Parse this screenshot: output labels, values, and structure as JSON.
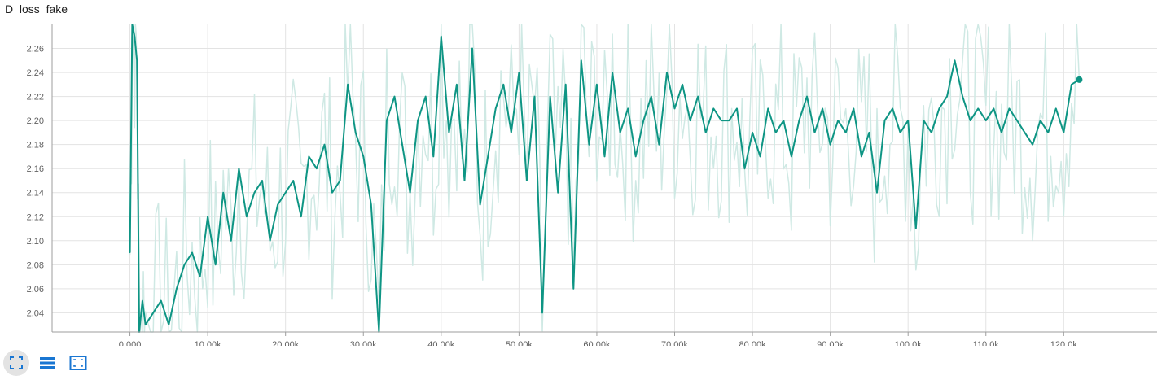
{
  "card": {
    "title": "D_loss_fake"
  },
  "toolbar": {
    "buttons": [
      {
        "icon": "expand-fullscreen-icon",
        "active": true
      },
      {
        "icon": "toggle-log-lines-icon",
        "active": false
      },
      {
        "icon": "fit-domain-icon",
        "active": false
      }
    ]
  },
  "colors": {
    "smoothed": "#0e9584",
    "raw": "#cfe9e4",
    "grid": "#e3e3e3",
    "axis": "#9e9e9e"
  },
  "chart_data": {
    "type": "line",
    "title": "D_loss_fake",
    "xlabel": "",
    "ylabel": "",
    "xlim": [
      -10000,
      132000
    ],
    "ylim": [
      2.024,
      2.28
    ],
    "grid": true,
    "x_ticks": [
      0,
      10000,
      20000,
      30000,
      40000,
      50000,
      60000,
      70000,
      80000,
      90000,
      100000,
      110000,
      120000
    ],
    "x_tick_labels": [
      "0.000",
      "10.00k",
      "20.00k",
      "30.00k",
      "40.00k",
      "50.00k",
      "60.00k",
      "70.00k",
      "80.00k",
      "90.00k",
      "100.0k",
      "110.0k",
      "120.0k"
    ],
    "y_ticks": [
      2.04,
      2.06,
      2.08,
      2.1,
      2.12,
      2.14,
      2.16,
      2.18,
      2.2,
      2.22,
      2.24,
      2.26
    ],
    "y_tick_labels": [
      "2.04",
      "2.06",
      "2.08",
      "2.10",
      "2.12",
      "2.14",
      "2.16",
      "2.18",
      "2.20",
      "2.22",
      "2.24",
      "2.26"
    ],
    "series": [
      {
        "role": "smoothed",
        "x": [
          0,
          300,
          600,
          900,
          1200,
          1600,
          2000,
          3000,
          4000,
          5000,
          6000,
          7000,
          8000,
          9000,
          10000,
          11000,
          12000,
          13000,
          14000,
          15000,
          16000,
          17000,
          18000,
          19000,
          20000,
          21000,
          22000,
          23000,
          24000,
          25000,
          26000,
          27000,
          28000,
          29000,
          30000,
          31000,
          32000,
          33000,
          34000,
          35000,
          36000,
          37000,
          38000,
          39000,
          40000,
          41000,
          42000,
          43000,
          44000,
          45000,
          46000,
          47000,
          48000,
          49000,
          50000,
          51000,
          52000,
          53000,
          54000,
          55000,
          56000,
          57000,
          58000,
          59000,
          60000,
          61000,
          62000,
          63000,
          64000,
          65000,
          66000,
          67000,
          68000,
          69000,
          70000,
          71000,
          72000,
          73000,
          74000,
          75000,
          76000,
          77000,
          78000,
          79000,
          80000,
          81000,
          82000,
          83000,
          84000,
          85000,
          86000,
          87000,
          88000,
          89000,
          90000,
          91000,
          92000,
          93000,
          94000,
          95000,
          96000,
          97000,
          98000,
          99000,
          100000,
          101000,
          102000,
          103000,
          104000,
          105000,
          106000,
          107000,
          108000,
          109000,
          110000,
          111000,
          112000,
          113000,
          114000,
          115000,
          116000,
          117000,
          118000,
          119000,
          120000,
          121000,
          122000
        ],
        "y": [
          2.09,
          2.28,
          2.27,
          2.25,
          2.02,
          2.05,
          2.03,
          2.04,
          2.05,
          2.03,
          2.06,
          2.08,
          2.09,
          2.07,
          2.12,
          2.08,
          2.14,
          2.1,
          2.16,
          2.12,
          2.14,
          2.15,
          2.1,
          2.13,
          2.14,
          2.15,
          2.12,
          2.17,
          2.16,
          2.18,
          2.14,
          2.15,
          2.23,
          2.19,
          2.17,
          2.13,
          2.02,
          2.2,
          2.22,
          2.18,
          2.14,
          2.2,
          2.22,
          2.17,
          2.27,
          2.19,
          2.23,
          2.15,
          2.26,
          2.13,
          2.17,
          2.21,
          2.23,
          2.19,
          2.24,
          2.15,
          2.22,
          2.04,
          2.22,
          2.14,
          2.23,
          2.06,
          2.25,
          2.18,
          2.23,
          2.17,
          2.24,
          2.19,
          2.21,
          2.17,
          2.2,
          2.22,
          2.18,
          2.24,
          2.21,
          2.23,
          2.2,
          2.22,
          2.19,
          2.21,
          2.2,
          2.2,
          2.21,
          2.16,
          2.19,
          2.17,
          2.21,
          2.19,
          2.2,
          2.17,
          2.2,
          2.22,
          2.19,
          2.21,
          2.18,
          2.2,
          2.19,
          2.21,
          2.17,
          2.19,
          2.14,
          2.2,
          2.21,
          2.19,
          2.2,
          2.11,
          2.2,
          2.19,
          2.21,
          2.22,
          2.25,
          2.22,
          2.2,
          2.21,
          2.2,
          2.21,
          2.19,
          2.21,
          2.2,
          2.19,
          2.18,
          2.2,
          2.19,
          2.21,
          2.19,
          2.23,
          2.234
        ]
      }
    ]
  }
}
